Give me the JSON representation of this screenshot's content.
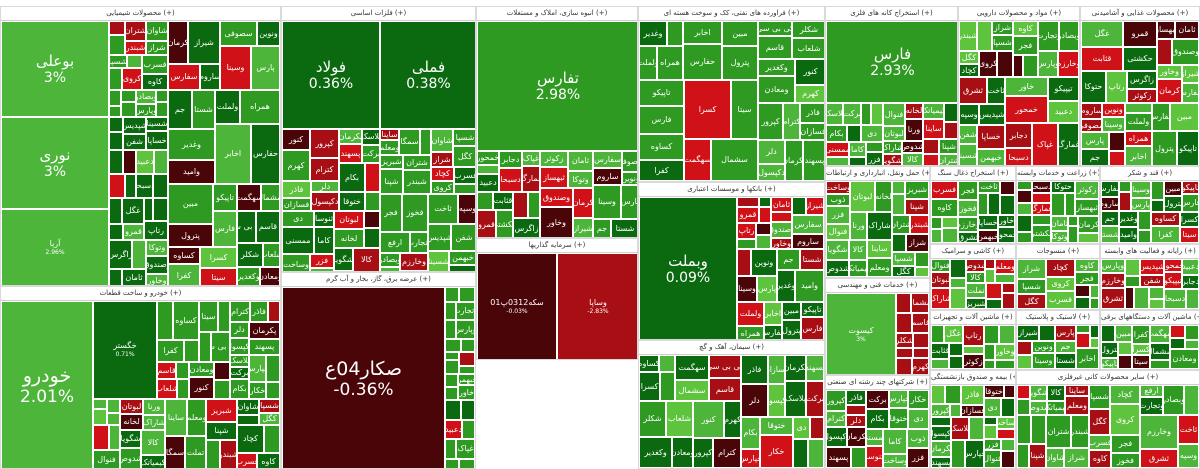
{
  "colors": {
    "strong_up": "#0b6a10",
    "up": "#2f9a22",
    "mild_up": "#4cb53a",
    "bright_up": "#5ec43e",
    "dark_red": "#4a0508",
    "red": "#a80f14",
    "bright_red": "#d01218"
  },
  "sectors": {
    "chemical": {
      "title": "محصولات شیمیایی (+)"
    },
    "metals": {
      "title": "فلزات اساسی (+)"
    },
    "realestate": {
      "title": "انبوه سازی، املاک و مستغلات (+)"
    },
    "oil": {
      "title": "فراورده های نفتی، کک و سوخت هسته ای (+)"
    },
    "mining": {
      "title": "استخراج کانه های فلزی (+)"
    },
    "pharma": {
      "title": "مواد و محصولات دارویی (+)"
    },
    "food": {
      "title": "محصولات غذایی و آشامیدنی (+)"
    },
    "auto": {
      "title": "خودرو و ساخت قطعات (+)"
    },
    "fund": {
      "title": "عرضه برق، گاز، بخار و آب گرم (+)"
    },
    "invest": {
      "title": "سرمایه گذاریها (+)"
    },
    "bank": {
      "title": "بانکها و موسسات اعتباری (+)"
    },
    "cement": {
      "title": "سیمان، آهک و گچ (+)"
    },
    "transport": {
      "title": "حمل ونقل، انبارداری و ارتباطات (+)"
    },
    "nonmetal": {
      "title": "استخراج ذغال سنگ (+)"
    },
    "tech": {
      "title": "خدمات فنی و مهندسی (+)"
    },
    "multi": {
      "title": "شرکتهای چند رشته ای صنعتی (+)"
    },
    "agri": {
      "title": "زراعت و خدمات وابسته (+)"
    },
    "sugar": {
      "title": "قند و شکر (+)"
    },
    "tile": {
      "title": "کاشی و سرامیک (+)"
    },
    "textile": {
      "title": "منسوجات (+)"
    },
    "computer": {
      "title": "رایانه و فعالیت های وابسته (+)"
    },
    "machines": {
      "title": "ماشین آلات و تجهیزات (+)"
    },
    "rubber": {
      "title": "لاستیک و پلاستیک (+)"
    },
    "electric": {
      "title": "ماشین آلات و دستگاههای برقی (+)"
    },
    "insurance": {
      "title": "بیمه و صندوق بازنشستگی (+)"
    },
    "other": {
      "title": "سایر محصولات کانی غیرفلزی (+)"
    }
  },
  "stocks": {
    "bouali": {
      "name": "بوعلی",
      "pct": "3%"
    },
    "nouri": {
      "name": "نوری",
      "pct": "3%"
    },
    "aria": {
      "name": "آریا",
      "pct": "2.96%"
    },
    "foulad": {
      "name": "فولاد",
      "pct": "0.36%"
    },
    "fameli": {
      "name": "فملی",
      "pct": "0.38%"
    },
    "tapars": {
      "name": "تفارس",
      "pct": "2.98%"
    },
    "fars": {
      "name": "فارس",
      "pct": "2.93%"
    },
    "khodro": {
      "name": "خودرو",
      "pct": "2.01%"
    },
    "khegostar": {
      "name": "خگستر",
      "pct": "0.71%"
    },
    "sakar": {
      "name": "صکار04ع",
      "pct": "-0.36%"
    },
    "seke": {
      "name": "سکه0312پ01",
      "pct": "-0.03%"
    },
    "vesapa": {
      "name": "وساپا",
      "pct": "-2.83%"
    },
    "vebmelat": {
      "name": "وبملت",
      "pct": "0.09%"
    },
    "kisoot": {
      "name": "کیسوت",
      "pct": "3%"
    }
  },
  "labels": [
    "شبریز",
    "شپنا",
    "شتران",
    "شبندر",
    "شاوان",
    "شراز",
    "شسپا",
    "کگل",
    "کچاد",
    "کروی",
    "فسرب",
    "کاوه",
    "فجر",
    "فخوز",
    "ارفع",
    "وتجارت",
    "وبصادر",
    "وپارس",
    "وخارزم",
    "ثشرق",
    "ثاخت",
    "وسپه",
    "شپدیس",
    "شفن",
    "شسینا",
    "خساپا",
    "خبهمن",
    "خاور",
    "خمحور",
    "تیپیکو",
    "دعبید",
    "دجابر",
    "دسبحا",
    "غپاک",
    "غمارگ",
    "غگل",
    "قثابت",
    "قمرو",
    "حکشتی",
    "حتوکا",
    "رتاپ",
    "زاگرس",
    "زکوثر",
    "ثبهساز",
    "ثامان",
    "وتوکا",
    "وصندوق",
    "وخاور",
    "کرمان",
    "شیراز",
    "سفارس",
    "ساروم",
    "سصوفی",
    "ونوین",
    "وسینا",
    "پارس",
    "جم",
    "شستا",
    "وغدیر",
    "وامید",
    "ولملت",
    "همراه",
    "اخابر",
    "حفارس",
    "مبین",
    "پترول",
    "تاپیکو",
    "فارس",
    "کساوه",
    "کفرا",
    "کسرا",
    "سیتا",
    "سهگمت",
    "سشمال",
    "کی بی سی",
    "قاسم",
    "شکلر",
    "شلعاب",
    "وکغدیر",
    "ومعادن",
    "کنور",
    "کهرم",
    "کپرور",
    "کترام",
    "فاذر",
    "فسازان",
    "دلر",
    "دکپسول",
    "پکرمان",
    "پسهند",
    "پلاسک",
    "برکت",
    "بکام",
    "خپارس",
    "ختوقا",
    "خکار",
    "دی",
    "ممسنی",
    "ثنوسا",
    "کاما",
    "وساخت",
    "ذوب",
    "فزر",
    "فنوال",
    "لبوتان",
    "لخانه",
    "ورنا",
    "شاراک",
    "شگویا",
    "شدوص",
    "کالا",
    "کیمیاتک",
    "ساینا",
    "ومعلم",
    "سمگا",
    "تملت"
  ]
}
